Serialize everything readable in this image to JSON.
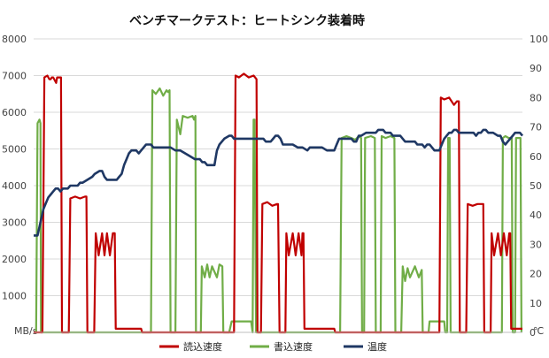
{
  "chart_data": {
    "type": "line",
    "title": "ベンチマークテスト：ヒートシンク装着時",
    "y_left": {
      "unit_label": "MB/s",
      "range": [
        0,
        8000
      ],
      "ticks": [
        "0",
        "1000",
        "2000",
        "3000",
        "4000",
        "5000",
        "6000",
        "7000",
        "8000"
      ]
    },
    "y_right": {
      "unit_label": "℃",
      "range": [
        0,
        100
      ],
      "ticks": [
        "0",
        "10",
        "20",
        "30",
        "40",
        "50",
        "60",
        "70",
        "80",
        "90",
        "100"
      ]
    },
    "grid": "horizontal",
    "legend_position": "bottom",
    "x_range": [
      0,
      1000
    ],
    "series": [
      {
        "name": "読込速度",
        "axis": "left",
        "color": "#c00000",
        "points": [
          [
            0,
            0
          ],
          [
            10,
            0
          ],
          [
            18,
            0
          ],
          [
            22,
            6950
          ],
          [
            28,
            7000
          ],
          [
            32,
            6900
          ],
          [
            35,
            6900
          ],
          [
            37,
            6950
          ],
          [
            40,
            6950
          ],
          [
            42,
            6900
          ],
          [
            46,
            6800
          ],
          [
            48,
            6950
          ],
          [
            56,
            6950
          ],
          [
            58,
            0
          ],
          [
            72,
            0
          ],
          [
            75,
            3650
          ],
          [
            85,
            3700
          ],
          [
            95,
            3650
          ],
          [
            105,
            3700
          ],
          [
            108,
            3700
          ],
          [
            110,
            0
          ],
          [
            124,
            0
          ],
          [
            127,
            2700
          ],
          [
            133,
            2100
          ],
          [
            140,
            2700
          ],
          [
            145,
            2100
          ],
          [
            150,
            2700
          ],
          [
            156,
            2100
          ],
          [
            162,
            2700
          ],
          [
            166,
            2700
          ],
          [
            168,
            100
          ],
          [
            220,
            100
          ],
          [
            222,
            0
          ],
          [
            410,
            0
          ],
          [
            413,
            7000
          ],
          [
            420,
            6950
          ],
          [
            430,
            7050
          ],
          [
            440,
            6950
          ],
          [
            450,
            7000
          ],
          [
            456,
            6900
          ],
          [
            458,
            0
          ],
          [
            465,
            0
          ],
          [
            468,
            3500
          ],
          [
            478,
            3550
          ],
          [
            488,
            3450
          ],
          [
            498,
            3500
          ],
          [
            500,
            3500
          ],
          [
            503,
            0
          ],
          [
            515,
            0
          ],
          [
            517,
            2700
          ],
          [
            522,
            2100
          ],
          [
            530,
            2700
          ],
          [
            536,
            2100
          ],
          [
            542,
            2700
          ],
          [
            548,
            2100
          ],
          [
            550,
            2700
          ],
          [
            552,
            2700
          ],
          [
            554,
            100
          ],
          [
            615,
            100
          ],
          [
            617,
            0
          ],
          [
            830,
            0
          ],
          [
            833,
            6400
          ],
          [
            840,
            6350
          ],
          [
            850,
            6400
          ],
          [
            860,
            6200
          ],
          [
            866,
            6300
          ],
          [
            870,
            6300
          ],
          [
            872,
            0
          ],
          [
            885,
            0
          ],
          [
            888,
            3500
          ],
          [
            898,
            3450
          ],
          [
            908,
            3500
          ],
          [
            918,
            3500
          ],
          [
            920,
            3500
          ],
          [
            922,
            0
          ],
          [
            935,
            0
          ],
          [
            937,
            2700
          ],
          [
            942,
            2100
          ],
          [
            950,
            2700
          ],
          [
            956,
            2100
          ],
          [
            962,
            2700
          ],
          [
            968,
            2100
          ],
          [
            973,
            2700
          ],
          [
            975,
            2700
          ],
          [
            977,
            100
          ],
          [
            1000,
            100
          ]
        ]
      },
      {
        "name": "書込速度",
        "axis": "left",
        "color": "#70ad47",
        "points": [
          [
            0,
            0
          ],
          [
            5,
            0
          ],
          [
            8,
            5700
          ],
          [
            12,
            5800
          ],
          [
            14,
            5700
          ],
          [
            15,
            0
          ],
          [
            240,
            0
          ],
          [
            243,
            6600
          ],
          [
            250,
            6500
          ],
          [
            258,
            6650
          ],
          [
            265,
            6450
          ],
          [
            272,
            6600
          ],
          [
            275,
            6550
          ],
          [
            278,
            6600
          ],
          [
            280,
            0
          ],
          [
            290,
            0
          ],
          [
            293,
            5800
          ],
          [
            300,
            5400
          ],
          [
            305,
            5900
          ],
          [
            315,
            5850
          ],
          [
            325,
            5900
          ],
          [
            328,
            5800
          ],
          [
            331,
            5900
          ],
          [
            332,
            0
          ],
          [
            342,
            0
          ],
          [
            344,
            1800
          ],
          [
            350,
            1500
          ],
          [
            355,
            1850
          ],
          [
            360,
            1500
          ],
          [
            365,
            1800
          ],
          [
            375,
            1500
          ],
          [
            380,
            1850
          ],
          [
            386,
            1800
          ],
          [
            388,
            0
          ],
          [
            400,
            0
          ],
          [
            405,
            300
          ],
          [
            445,
            300
          ],
          [
            448,
            0
          ],
          [
            450,
            5800
          ],
          [
            452,
            5800
          ],
          [
            455,
            0
          ],
          [
            627,
            0
          ],
          [
            630,
            5300
          ],
          [
            640,
            5350
          ],
          [
            650,
            5300
          ],
          [
            658,
            5250
          ],
          [
            665,
            5350
          ],
          [
            670,
            5300
          ],
          [
            672,
            0
          ],
          [
            676,
            0
          ],
          [
            678,
            5300
          ],
          [
            690,
            5350
          ],
          [
            698,
            5300
          ],
          [
            700,
            0
          ],
          [
            710,
            0
          ],
          [
            712,
            5350
          ],
          [
            720,
            5300
          ],
          [
            730,
            5350
          ],
          [
            738,
            5300
          ],
          [
            740,
            0
          ],
          [
            752,
            0
          ],
          [
            755,
            1800
          ],
          [
            760,
            1400
          ],
          [
            765,
            1750
          ],
          [
            770,
            1500
          ],
          [
            780,
            1800
          ],
          [
            788,
            1500
          ],
          [
            794,
            1700
          ],
          [
            796,
            0
          ],
          [
            808,
            0
          ],
          [
            810,
            300
          ],
          [
            840,
            300
          ],
          [
            842,
            0
          ],
          [
            846,
            0
          ],
          [
            848,
            5300
          ],
          [
            851,
            5300
          ],
          [
            853,
            0
          ],
          [
            958,
            0
          ],
          [
            960,
            5300
          ],
          [
            965,
            5350
          ],
          [
            972,
            5300
          ],
          [
            978,
            5300
          ],
          [
            980,
            0
          ],
          [
            985,
            0
          ],
          [
            987,
            5300
          ],
          [
            992,
            5300
          ],
          [
            996,
            5300
          ],
          [
            998,
            0
          ]
        ]
      },
      {
        "name": "温度",
        "axis": "right",
        "color": "#1f3864",
        "points": [
          [
            0,
            33
          ],
          [
            8,
            33
          ],
          [
            12,
            36
          ],
          [
            16,
            39
          ],
          [
            20,
            42
          ],
          [
            25,
            44
          ],
          [
            30,
            46
          ],
          [
            35,
            47
          ],
          [
            40,
            48
          ],
          [
            45,
            49
          ],
          [
            50,
            49
          ],
          [
            55,
            48
          ],
          [
            60,
            49
          ],
          [
            65,
            49
          ],
          [
            70,
            49
          ],
          [
            75,
            50
          ],
          [
            85,
            50
          ],
          [
            90,
            50
          ],
          [
            95,
            51
          ],
          [
            100,
            51
          ],
          [
            110,
            52
          ],
          [
            120,
            53
          ],
          [
            125,
            54
          ],
          [
            135,
            55
          ],
          [
            140,
            55
          ],
          [
            145,
            53
          ],
          [
            150,
            52
          ],
          [
            160,
            52
          ],
          [
            170,
            52
          ],
          [
            175,
            53
          ],
          [
            180,
            54
          ],
          [
            185,
            57
          ],
          [
            190,
            59
          ],
          [
            195,
            61
          ],
          [
            200,
            62
          ],
          [
            205,
            62
          ],
          [
            210,
            62
          ],
          [
            215,
            61
          ],
          [
            220,
            62
          ],
          [
            230,
            64
          ],
          [
            240,
            64
          ],
          [
            245,
            63
          ],
          [
            250,
            63
          ],
          [
            260,
            63
          ],
          [
            270,
            63
          ],
          [
            280,
            63
          ],
          [
            290,
            62
          ],
          [
            300,
            62
          ],
          [
            310,
            61
          ],
          [
            320,
            60
          ],
          [
            330,
            59
          ],
          [
            340,
            59
          ],
          [
            345,
            58
          ],
          [
            350,
            58
          ],
          [
            355,
            57
          ],
          [
            360,
            57
          ],
          [
            365,
            57
          ],
          [
            370,
            57
          ],
          [
            372,
            59
          ],
          [
            375,
            62
          ],
          [
            380,
            64
          ],
          [
            390,
            66
          ],
          [
            400,
            67
          ],
          [
            405,
            67
          ],
          [
            410,
            66
          ],
          [
            420,
            66
          ],
          [
            430,
            66
          ],
          [
            440,
            66
          ],
          [
            450,
            66
          ],
          [
            460,
            66
          ],
          [
            470,
            66
          ],
          [
            475,
            65
          ],
          [
            480,
            65
          ],
          [
            485,
            65
          ],
          [
            490,
            66
          ],
          [
            495,
            67
          ],
          [
            500,
            67
          ],
          [
            505,
            66
          ],
          [
            510,
            64
          ],
          [
            520,
            64
          ],
          [
            530,
            64
          ],
          [
            540,
            63
          ],
          [
            550,
            63
          ],
          [
            560,
            62
          ],
          [
            565,
            63
          ],
          [
            570,
            63
          ],
          [
            580,
            63
          ],
          [
            590,
            63
          ],
          [
            600,
            62
          ],
          [
            610,
            62
          ],
          [
            615,
            62
          ],
          [
            620,
            64
          ],
          [
            625,
            66
          ],
          [
            630,
            66
          ],
          [
            640,
            66
          ],
          [
            650,
            66
          ],
          [
            655,
            65
          ],
          [
            660,
            65
          ],
          [
            665,
            67
          ],
          [
            670,
            67
          ],
          [
            680,
            68
          ],
          [
            690,
            68
          ],
          [
            700,
            68
          ],
          [
            705,
            69
          ],
          [
            710,
            69
          ],
          [
            715,
            69
          ],
          [
            720,
            68
          ],
          [
            725,
            68
          ],
          [
            730,
            68
          ],
          [
            735,
            67
          ],
          [
            740,
            67
          ],
          [
            750,
            67
          ],
          [
            760,
            65
          ],
          [
            770,
            65
          ],
          [
            780,
            65
          ],
          [
            785,
            64
          ],
          [
            790,
            64
          ],
          [
            795,
            64
          ],
          [
            800,
            63
          ],
          [
            805,
            64
          ],
          [
            810,
            64
          ],
          [
            815,
            63
          ],
          [
            820,
            62
          ],
          [
            825,
            62
          ],
          [
            830,
            62
          ],
          [
            835,
            64
          ],
          [
            840,
            66
          ],
          [
            845,
            67
          ],
          [
            850,
            68
          ],
          [
            855,
            68
          ],
          [
            860,
            69
          ],
          [
            865,
            69
          ],
          [
            870,
            68
          ],
          [
            880,
            68
          ],
          [
            890,
            68
          ],
          [
            900,
            68
          ],
          [
            905,
            67
          ],
          [
            910,
            68
          ],
          [
            915,
            68
          ],
          [
            920,
            69
          ],
          [
            925,
            69
          ],
          [
            930,
            68
          ],
          [
            940,
            68
          ],
          [
            950,
            67
          ],
          [
            955,
            67
          ],
          [
            960,
            65
          ],
          [
            965,
            64
          ],
          [
            970,
            65
          ],
          [
            975,
            66
          ],
          [
            980,
            67
          ],
          [
            985,
            68
          ],
          [
            990,
            68
          ],
          [
            995,
            68
          ],
          [
            1000,
            67
          ]
        ]
      }
    ]
  }
}
